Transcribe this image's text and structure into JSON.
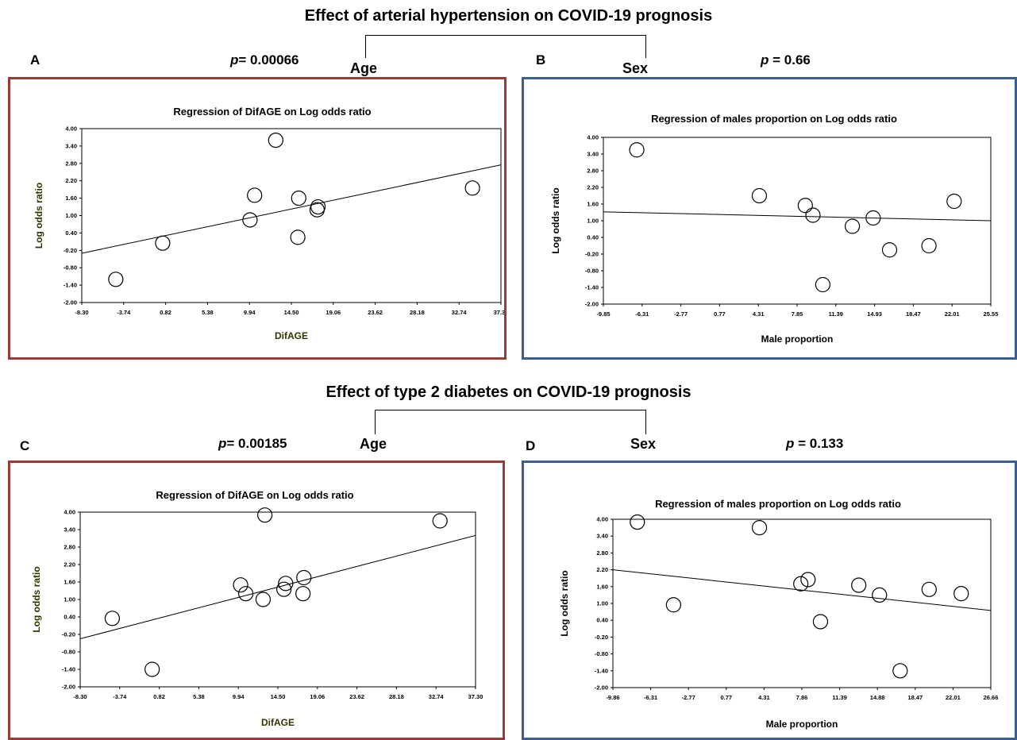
{
  "figure": {
    "title_top": "Effect of arterial hypertension on COVID-19 prognosis",
    "title_bottom": "Effect of type 2 diabetes on COVID-19 prognosis",
    "age_label": "Age",
    "sex_label": "Sex",
    "colors": {
      "age_border": "#9b3a36",
      "sex_border": "#3a5f92"
    }
  },
  "panels": [
    {
      "letter": "A",
      "p_label": "p",
      "p_eq": "= 0.00066"
    },
    {
      "letter": "B",
      "p_label": "p",
      "p_eq": " = 0.66"
    },
    {
      "letter": "C",
      "p_label": "p",
      "p_eq": "= 0.00185"
    },
    {
      "letter": "D",
      "p_label": "p",
      "p_eq": " = 0.133"
    }
  ],
  "chart_data": [
    {
      "type": "scatter",
      "title": "Regression of DifAGE on Log odds ratio",
      "xlabel": "DifAGE",
      "ylabel": "Log odds ratio",
      "xlim": [
        -8.3,
        37.3
      ],
      "ylim": [
        -2.0,
        4.0
      ],
      "xticks": [
        "-8.30",
        "-3.74",
        "0.82",
        "5.38",
        "9.94",
        "14.50",
        "19.06",
        "23.62",
        "28.18",
        "32.74",
        "37.30"
      ],
      "yticks": [
        "4.00",
        "3.40",
        "2.80",
        "2.20",
        "1.60",
        "1.00",
        "0.40",
        "-0.20",
        "-0.80",
        "-1.40",
        "-2.00"
      ],
      "points": [
        {
          "x": -4.6,
          "y": -1.2
        },
        {
          "x": 0.5,
          "y": 0.05
        },
        {
          "x": 10.0,
          "y": 0.85
        },
        {
          "x": 10.5,
          "y": 1.7
        },
        {
          "x": 12.8,
          "y": 3.6
        },
        {
          "x": 15.3,
          "y": 1.6
        },
        {
          "x": 15.2,
          "y": 0.25
        },
        {
          "x": 17.3,
          "y": 1.2
        },
        {
          "x": 17.4,
          "y": 1.3
        },
        {
          "x": 34.2,
          "y": 1.95
        }
      ],
      "fit": [
        [
          -8.3,
          -0.3
        ],
        [
          37.3,
          2.75
        ]
      ]
    },
    {
      "type": "scatter",
      "title": "Regression of males proportion  on Log odds ratio",
      "xlabel": "Male proportion",
      "ylabel": "Log odds ratio",
      "xlim": [
        -9.85,
        25.55
      ],
      "ylim": [
        -2.0,
        4.0
      ],
      "xticks": [
        "-9.85",
        "-6.31",
        "-2.77",
        "0.77",
        "4.31",
        "7.85",
        "11.39",
        "14.93",
        "18.47",
        "22.01",
        "25.55"
      ],
      "yticks": [
        "4.00",
        "3.40",
        "2.80",
        "2.20",
        "1.60",
        "1.00",
        "0.40",
        "-0.20",
        "-0.80",
        "-1.40",
        "-2.00"
      ],
      "points": [
        {
          "x": -6.8,
          "y": 3.55
        },
        {
          "x": 4.4,
          "y": 1.9
        },
        {
          "x": 8.6,
          "y": 1.55
        },
        {
          "x": 9.3,
          "y": 1.2
        },
        {
          "x": 10.2,
          "y": -1.3
        },
        {
          "x": 12.9,
          "y": 0.8
        },
        {
          "x": 14.8,
          "y": 1.1
        },
        {
          "x": 16.3,
          "y": -0.05
        },
        {
          "x": 19.9,
          "y": 0.1
        },
        {
          "x": 22.2,
          "y": 1.7
        }
      ],
      "fit": [
        [
          -9.85,
          1.32
        ],
        [
          25.55,
          1.0
        ]
      ]
    },
    {
      "type": "scatter",
      "title": "Regression of DifAGE on Log odds ratio",
      "xlabel": "DifAGE",
      "ylabel": "Log odds ratio",
      "xlim": [
        -8.3,
        37.3
      ],
      "ylim": [
        -2.0,
        4.0
      ],
      "xticks": [
        "-8.30",
        "-3.74",
        "0.82",
        "5.38",
        "9.94",
        "14.50",
        "19.06",
        "23.62",
        "28.18",
        "32.74",
        "37.30"
      ],
      "yticks": [
        "4.00",
        "3.40",
        "2.80",
        "2.20",
        "1.60",
        "1.00",
        "0.40",
        "-0.20",
        "-0.80",
        "-1.40",
        "-2.00"
      ],
      "points": [
        {
          "x": -4.6,
          "y": 0.35
        },
        {
          "x": 0.0,
          "y": -1.4
        },
        {
          "x": 10.2,
          "y": 1.5
        },
        {
          "x": 10.8,
          "y": 1.2
        },
        {
          "x": 12.8,
          "y": 1.0
        },
        {
          "x": 13.0,
          "y": 3.9
        },
        {
          "x": 15.2,
          "y": 1.35
        },
        {
          "x": 15.4,
          "y": 1.55
        },
        {
          "x": 17.5,
          "y": 1.75
        },
        {
          "x": 17.4,
          "y": 1.2
        },
        {
          "x": 33.2,
          "y": 3.7
        }
      ],
      "fit": [
        [
          -8.3,
          -0.35
        ],
        [
          37.3,
          3.2
        ]
      ]
    },
    {
      "type": "scatter",
      "title": "Regression of males proportion  on Log odds ratio",
      "xlabel": "Male proportion",
      "ylabel": "Log odds ratio",
      "xlim": [
        -9.86,
        26.66
      ],
      "ylim": [
        -2.0,
        4.0
      ],
      "xticks": [
        "-9.86",
        "-6.31",
        "-2.77",
        "0.77",
        "4.31",
        "7.86",
        "11.39",
        "14.88",
        "18.47",
        "22.01",
        "26.66"
      ],
      "yticks": [
        "4.00",
        "3.40",
        "2.80",
        "2.20",
        "1.60",
        "1.00",
        "0.40",
        "-0.20",
        "-0.80",
        "-1.40",
        "-2.00"
      ],
      "points": [
        {
          "x": -7.5,
          "y": 3.9
        },
        {
          "x": -4.0,
          "y": 0.95
        },
        {
          "x": 4.3,
          "y": 3.7
        },
        {
          "x": 8.3,
          "y": 1.7
        },
        {
          "x": 9.0,
          "y": 1.85
        },
        {
          "x": 10.2,
          "y": 0.35
        },
        {
          "x": 13.9,
          "y": 1.65
        },
        {
          "x": 15.9,
          "y": 1.3
        },
        {
          "x": 17.9,
          "y": -1.4
        },
        {
          "x": 20.7,
          "y": 1.5
        },
        {
          "x": 23.8,
          "y": 1.35
        }
      ],
      "fit": [
        [
          -9.86,
          2.2
        ],
        [
          26.66,
          0.75
        ]
      ]
    }
  ]
}
